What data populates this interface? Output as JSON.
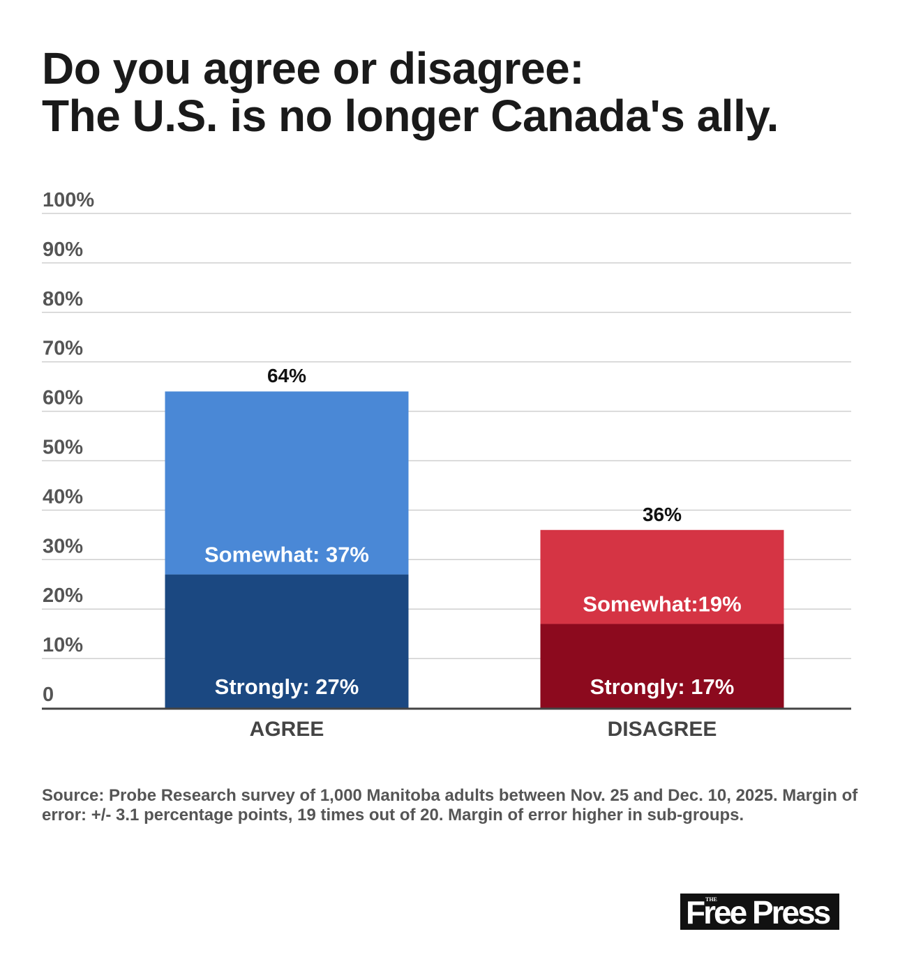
{
  "chart_data": {
    "type": "bar",
    "stacked": true,
    "title": [
      "Do you agree or disagree:",
      "The U.S. is no longer Canada's ally."
    ],
    "categories": [
      "AGREE",
      "DISAGREE"
    ],
    "series": [
      {
        "key": "strongly",
        "values": [
          27,
          17
        ],
        "colors": [
          "#1b4881",
          "#8c0a1e"
        ],
        "labels": [
          "Strongly: 27%",
          "Strongly: 17%"
        ]
      },
      {
        "key": "somewhat",
        "values": [
          37,
          19
        ],
        "colors": [
          "#4a88d6",
          "#d53444"
        ],
        "labels": [
          "Somewhat: 37%",
          "Somewhat:19%"
        ]
      }
    ],
    "totals": [
      "64%",
      "36%"
    ],
    "total_values": [
      64,
      36
    ],
    "ylim": [
      0,
      100
    ],
    "yticks": [
      0,
      10,
      20,
      30,
      40,
      50,
      60,
      70,
      80,
      90,
      100
    ],
    "ytick_labels": [
      "0",
      "10%",
      "20%",
      "30%",
      "40%",
      "50%",
      "60%",
      "70%",
      "80%",
      "90%",
      "100%"
    ],
    "grid": true,
    "xlabel": "",
    "ylabel": ""
  },
  "source": "Source: Probe Research survey of 1,000 Manitoba adults between Nov. 25 and Dec. 10, 2025. Margin of error: +/- 3.1 percentage points, 19 times out of 20. Margin of error higher in sub-groups.",
  "logo": {
    "small": "THE",
    "name": "Free Press"
  }
}
